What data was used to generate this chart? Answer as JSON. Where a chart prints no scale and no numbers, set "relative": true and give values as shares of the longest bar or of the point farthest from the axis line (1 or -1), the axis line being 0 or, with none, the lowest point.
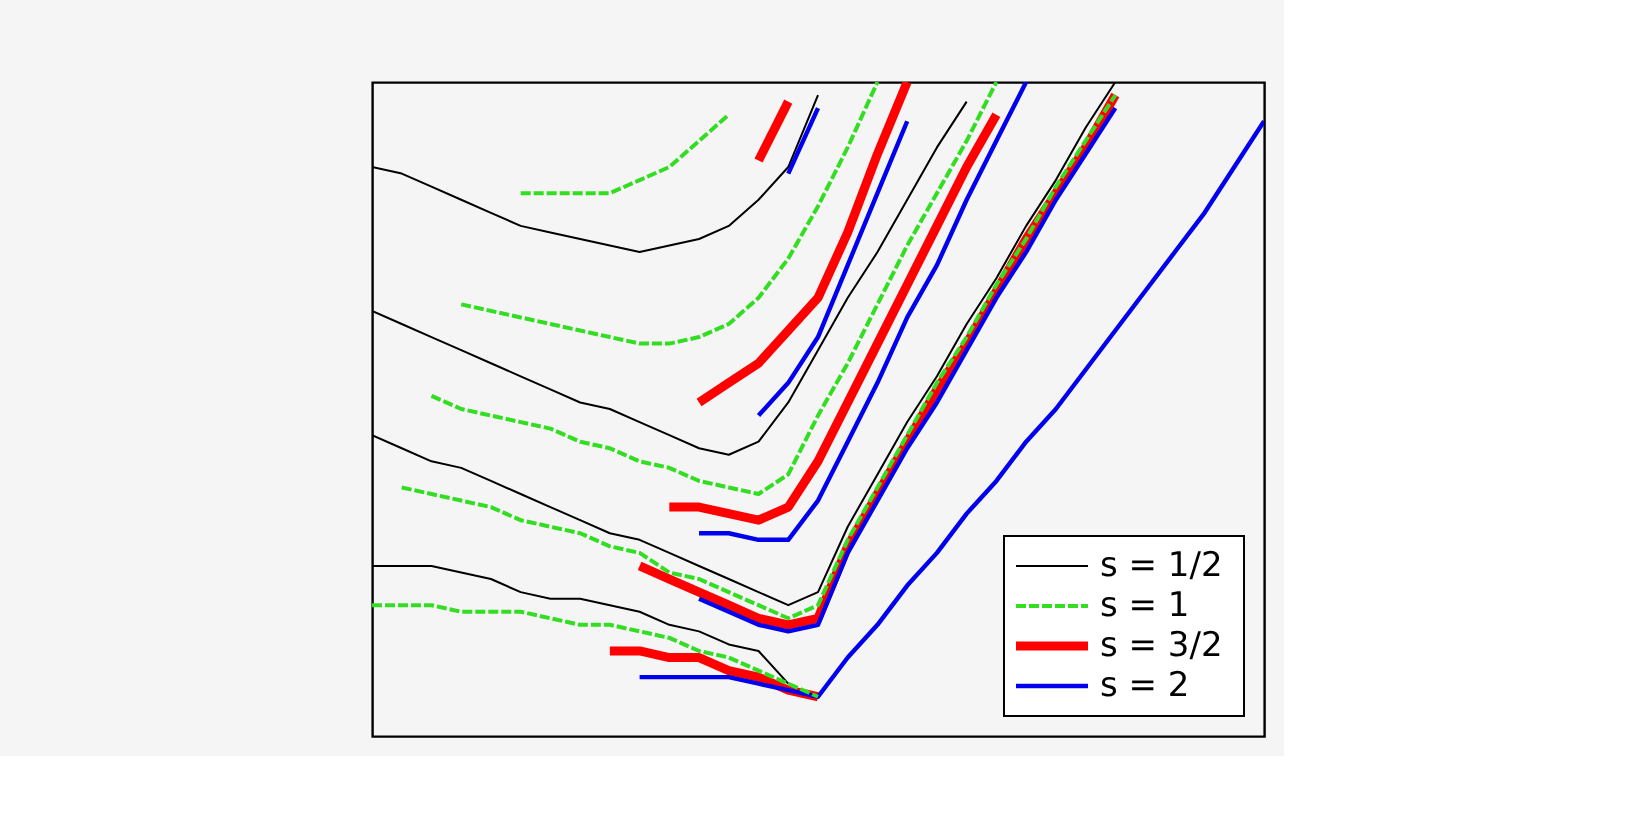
{
  "chart_data": {
    "type": "line",
    "relative": true,
    "legend": "bottom right",
    "categories": [
      null,
      null,
      null,
      null,
      null,
      null,
      null,
      null,
      null,
      null,
      null,
      null,
      null,
      null,
      null,
      null,
      null,
      null,
      null,
      null,
      null,
      null,
      null,
      null,
      null,
      null,
      null,
      null,
      null,
      null,
      null
    ],
    "series": [
      {
        "name": "s = 1/2",
        "color": "#000000",
        "line_style": "solid",
        "values": [
          0.26,
          0.26,
          0.26,
          0.25,
          0.24,
          0.22,
          0.21,
          0.21,
          0.2,
          0.19,
          0.17,
          0.16,
          0.14,
          0.13,
          0.08,
          null,
          null,
          null,
          null,
          null,
          null,
          null,
          null,
          null,
          null,
          null,
          null,
          null,
          null,
          null,
          null
        ]
      },
      {
        "color": "#000000",
        "line_style": "solid",
        "values": [
          0.46,
          0.44,
          0.42,
          0.41,
          0.39,
          0.37,
          0.35,
          0.33,
          0.31,
          0.3,
          0.28,
          0.26,
          0.24,
          0.22,
          0.2,
          0.22,
          0.32,
          0.4,
          0.48,
          0.55,
          0.63,
          0.7,
          0.78,
          0.85,
          0.93,
          1.0,
          null,
          null,
          null,
          null,
          null
        ]
      },
      {
        "color": "#000000",
        "line_style": "solid",
        "values": [
          0.65,
          0.63,
          0.61,
          0.59,
          0.57,
          0.55,
          0.53,
          0.51,
          0.5,
          0.48,
          0.46,
          0.44,
          0.43,
          0.45,
          0.51,
          0.59,
          0.67,
          0.74,
          0.82,
          0.9,
          0.97,
          null,
          null,
          null,
          null,
          null,
          null,
          null,
          null,
          null,
          null
        ]
      },
      {
        "color": "#000000",
        "line_style": "solid",
        "values": [
          0.87,
          0.86,
          0.84,
          0.82,
          0.8,
          0.78,
          0.77,
          0.76,
          0.75,
          0.74,
          0.75,
          0.76,
          0.78,
          0.82,
          0.87,
          0.98,
          null,
          null,
          null,
          null,
          null,
          null,
          null,
          null,
          null,
          null,
          null,
          null,
          null,
          null,
          null
        ]
      },
      {
        "name": "s = 1",
        "color": "#33dd22",
        "line_style": "dashed",
        "values": [
          0.2,
          0.2,
          0.2,
          0.19,
          0.19,
          0.19,
          0.18,
          0.17,
          0.17,
          0.16,
          0.15,
          0.13,
          0.12,
          0.1,
          0.08,
          0.06,
          null,
          null,
          null,
          null,
          null,
          null,
          null,
          null,
          null,
          null,
          null,
          null,
          null,
          null,
          null
        ]
      },
      {
        "color": "#33dd22",
        "line_style": "dashed",
        "values": [
          null,
          0.38,
          0.37,
          0.36,
          0.35,
          0.33,
          0.32,
          0.31,
          0.29,
          0.28,
          0.25,
          0.24,
          0.22,
          0.2,
          0.18,
          0.2,
          0.3,
          0.38,
          0.46,
          0.54,
          0.61,
          0.69,
          0.76,
          0.84,
          0.91,
          0.98,
          null,
          null,
          null,
          null,
          null
        ]
      },
      {
        "color": "#33dd22",
        "line_style": "dashed",
        "values": [
          null,
          null,
          0.52,
          0.5,
          0.49,
          0.48,
          0.47,
          0.45,
          0.44,
          0.42,
          0.41,
          0.39,
          0.38,
          0.37,
          0.4,
          0.49,
          0.57,
          0.66,
          0.75,
          0.83,
          0.91,
          1.0,
          null,
          null,
          null,
          null,
          null,
          null,
          null,
          null,
          null
        ]
      },
      {
        "color": "#33dd22",
        "line_style": "dashed",
        "values": [
          null,
          null,
          null,
          0.66,
          0.65,
          0.64,
          0.63,
          0.62,
          0.61,
          0.6,
          0.6,
          0.61,
          0.63,
          0.67,
          0.73,
          0.81,
          0.9,
          1.0,
          null,
          null,
          null,
          null,
          null,
          null,
          null,
          null,
          null,
          null,
          null,
          null,
          null
        ]
      },
      {
        "color": "#33dd22",
        "line_style": "dashed",
        "values": [
          null,
          null,
          null,
          null,
          null,
          0.83,
          0.83,
          0.83,
          0.83,
          0.85,
          0.87,
          0.91,
          0.95,
          null,
          null,
          null,
          null,
          null,
          null,
          null,
          null,
          null,
          null,
          null,
          null,
          null,
          null,
          null,
          null,
          null,
          null
        ]
      },
      {
        "name": "s = 3/2",
        "color": "#ff0000",
        "line_style": "solid",
        "values": [
          null,
          null,
          null,
          null,
          null,
          null,
          null,
          null,
          0.13,
          0.13,
          0.12,
          0.12,
          0.1,
          0.09,
          0.07,
          0.06,
          null,
          null,
          null,
          null,
          null,
          null,
          null,
          null,
          null,
          null,
          null,
          null,
          null,
          null,
          null
        ]
      },
      {
        "color": "#ff0000",
        "line_style": "solid",
        "values": [
          null,
          null,
          null,
          null,
          null,
          null,
          null,
          null,
          null,
          0.26,
          0.24,
          0.22,
          0.2,
          0.18,
          0.17,
          0.18,
          0.29,
          0.37,
          0.45,
          0.53,
          0.6,
          0.68,
          0.76,
          0.83,
          0.9,
          0.98,
          null,
          null,
          null,
          null,
          null
        ]
      },
      {
        "color": "#ff0000",
        "line_style": "solid",
        "values": [
          null,
          null,
          null,
          null,
          null,
          null,
          null,
          null,
          null,
          null,
          0.35,
          0.35,
          0.34,
          0.33,
          0.35,
          0.42,
          0.51,
          0.6,
          0.69,
          0.78,
          0.87,
          0.95,
          null,
          null,
          null,
          null,
          null,
          null,
          null,
          null,
          null
        ]
      },
      {
        "color": "#ff0000",
        "line_style": "solid",
        "values": [
          null,
          null,
          null,
          null,
          null,
          null,
          null,
          null,
          null,
          null,
          null,
          0.51,
          0.54,
          0.57,
          0.62,
          0.67,
          0.77,
          0.89,
          1.0,
          null,
          null,
          null,
          null,
          null,
          null,
          null,
          null,
          null,
          null,
          null,
          null
        ]
      },
      {
        "color": "#ff0000",
        "line_style": "solid",
        "values": [
          null,
          null,
          null,
          null,
          null,
          null,
          null,
          null,
          null,
          null,
          null,
          null,
          null,
          0.88,
          0.97,
          null,
          null,
          null,
          null,
          null,
          null,
          null,
          null,
          null,
          null,
          null,
          null,
          null,
          null,
          null,
          null
        ]
      },
      {
        "name": "s = 2",
        "color": "#0000ee",
        "line_style": "solid",
        "values": [
          null,
          null,
          null,
          null,
          null,
          null,
          null,
          null,
          null,
          0.09,
          0.09,
          0.09,
          0.09,
          0.08,
          0.07,
          0.06,
          0.12,
          0.17,
          0.23,
          0.28,
          0.34,
          0.39,
          0.45,
          0.5,
          0.56,
          0.62,
          0.68,
          0.74,
          0.8,
          0.87,
          0.94
        ]
      },
      {
        "color": "#0000ee",
        "line_style": "solid",
        "values": [
          null,
          null,
          null,
          null,
          null,
          null,
          null,
          null,
          null,
          null,
          null,
          0.21,
          0.19,
          0.17,
          0.16,
          0.17,
          0.28,
          0.36,
          0.44,
          0.51,
          0.59,
          0.67,
          0.74,
          0.82,
          0.89,
          0.96,
          null,
          null,
          null,
          null,
          null
        ]
      },
      {
        "color": "#0000ee",
        "line_style": "solid",
        "values": [
          null,
          null,
          null,
          null,
          null,
          null,
          null,
          null,
          null,
          null,
          null,
          0.31,
          0.31,
          0.3,
          0.3,
          0.36,
          0.45,
          0.54,
          0.64,
          0.72,
          0.82,
          0.91,
          1.0,
          null,
          null,
          null,
          null,
          null,
          null,
          null,
          null
        ]
      },
      {
        "color": "#0000ee",
        "line_style": "solid",
        "values": [
          null,
          null,
          null,
          null,
          null,
          null,
          null,
          null,
          null,
          null,
          null,
          null,
          null,
          0.49,
          0.54,
          0.61,
          0.72,
          0.83,
          0.94,
          null,
          null,
          null,
          null,
          null,
          null,
          null,
          null,
          null,
          null,
          null,
          null
        ]
      },
      {
        "color": "#0000ee",
        "line_style": "solid",
        "values": [
          null,
          null,
          null,
          null,
          null,
          null,
          null,
          null,
          null,
          null,
          null,
          null,
          null,
          null,
          0.86,
          0.96,
          null,
          null,
          null,
          null,
          null,
          null,
          null,
          null,
          null,
          null,
          null,
          null,
          null,
          null,
          null
        ]
      }
    ]
  }
}
